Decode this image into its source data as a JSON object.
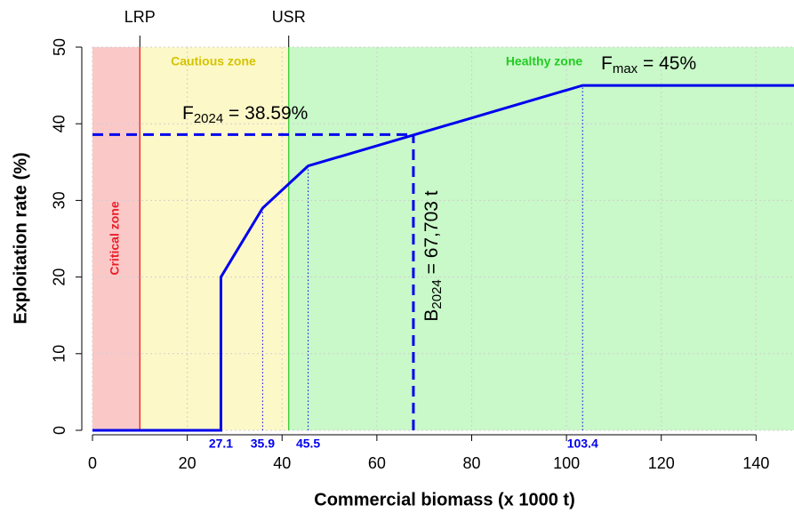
{
  "chart_data": {
    "type": "line",
    "x_label": "Commercial biomass (x 1000 t)",
    "y_label": "Exploitation rate (%)",
    "xlim": [
      0,
      148
    ],
    "ylim": [
      0,
      50
    ],
    "xticks": [
      0,
      20,
      40,
      60,
      80,
      100,
      120,
      140
    ],
    "yticks": [
      0,
      10,
      20,
      30,
      40,
      50
    ],
    "grid": true,
    "x": [
      0,
      27.1,
      27.1,
      35.9,
      45.5,
      103.4,
      148
    ],
    "values": [
      0,
      0,
      20,
      29,
      34.5,
      45,
      45
    ],
    "color": "#0000ee",
    "reference_lines": [
      {
        "name": "LRP",
        "value": 10,
        "color": "#e8202a"
      },
      {
        "name": "USR",
        "value": 41.4,
        "color": "#33cc33"
      }
    ],
    "zones": [
      {
        "name": "Critical zone",
        "color": "#fbc8c8",
        "label_color": "#e8202a"
      },
      {
        "name": "Cautious zone",
        "color": "#fdf8c8",
        "label_color": "#d4c400"
      },
      {
        "name": "Healthy zone",
        "color": "#c9f8c9",
        "label_color": "#22cc22"
      }
    ],
    "breakpoints": [
      {
        "x": 27.1,
        "y": 20
      },
      {
        "x": 35.9,
        "y": 29
      },
      {
        "x": 45.5,
        "y": 34.5
      },
      {
        "x": 103.4,
        "y": 45
      }
    ],
    "fmax_label": {
      "symbol": "F",
      "subscript": "max",
      "text": " = 45%"
    },
    "current": {
      "f": 38.59,
      "b": 67.703,
      "f_label": {
        "symbol": "F",
        "subscript": "2024",
        "text": " = 38.59%"
      },
      "b_label": {
        "symbol": "B",
        "subscript": "2024",
        "text": " = 67,703 t"
      }
    }
  }
}
